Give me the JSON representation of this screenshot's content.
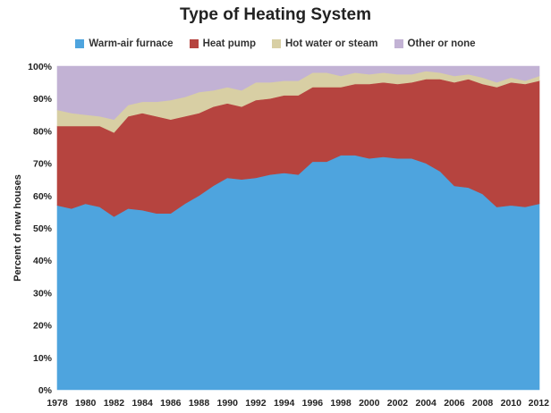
{
  "chart_data": {
    "type": "area",
    "stacked": true,
    "title": "Type of Heating System",
    "xlabel": "",
    "ylabel": "Percent of new houses",
    "ylim": [
      0,
      100
    ],
    "yticks": [
      "0%",
      "10%",
      "20%",
      "30%",
      "40%",
      "50%",
      "60%",
      "70%",
      "80%",
      "90%",
      "100%"
    ],
    "xticks": [
      "1978",
      "1980",
      "1982",
      "1984",
      "1986",
      "1988",
      "1990",
      "1992",
      "1994",
      "1996",
      "1998",
      "2000",
      "2002",
      "2004",
      "2006",
      "2008",
      "2010",
      "2012"
    ],
    "legend_position": "top",
    "grid": false,
    "background": "#ffffff",
    "x": [
      1978,
      1979,
      1980,
      1981,
      1982,
      1983,
      1984,
      1985,
      1986,
      1987,
      1988,
      1989,
      1990,
      1991,
      1992,
      1993,
      1994,
      1995,
      1996,
      1997,
      1998,
      1999,
      2000,
      2001,
      2002,
      2003,
      2004,
      2005,
      2006,
      2007,
      2008,
      2009,
      2010,
      2011,
      2012
    ],
    "series": [
      {
        "name": "Warm-air furnace",
        "color": "#4ea4de",
        "values": [
          57,
          56,
          57.5,
          56.5,
          53.5,
          56,
          55.5,
          54.5,
          54.5,
          57.5,
          60,
          63,
          65.5,
          65,
          65.5,
          66.5,
          67,
          66.5,
          70.5,
          70.5,
          72.5,
          72.5,
          71.5,
          72,
          71.5,
          71.5,
          70,
          67.5,
          63,
          62.5,
          60.5,
          56.5,
          57,
          56.5,
          57.5
        ]
      },
      {
        "name": "Heat pump",
        "color": "#b6443f",
        "values": [
          24.5,
          25.5,
          24,
          25,
          26,
          28.5,
          30,
          30,
          29,
          27,
          25.5,
          24.5,
          23,
          22.5,
          24,
          23.5,
          24,
          24.5,
          23,
          23,
          21,
          22,
          23,
          23,
          23,
          23.5,
          26,
          28.5,
          32,
          33.5,
          34,
          37,
          38,
          38,
          38
        ]
      },
      {
        "name": "Hot water or steam",
        "color": "#d8cfa4",
        "values": [
          5,
          4,
          3.5,
          3,
          4,
          3.5,
          3.5,
          4.5,
          6,
          6,
          6.5,
          5,
          5,
          5,
          5.5,
          5,
          4.5,
          4.5,
          4.5,
          4.5,
          3.5,
          3.5,
          3,
          3,
          3,
          2.5,
          2.5,
          2,
          2,
          1.5,
          2,
          1.5,
          1.5,
          1,
          1.5
        ]
      },
      {
        "name": "Other or none",
        "color": "#c2b2d4",
        "values": [
          13.5,
          14.5,
          15,
          15.5,
          16.5,
          12,
          11,
          11,
          10.5,
          9.5,
          8,
          7.5,
          6.5,
          7.5,
          5,
          5,
          4.5,
          4.5,
          2,
          2,
          3,
          2,
          2.5,
          2,
          2.5,
          2.5,
          1.5,
          2,
          3,
          2.5,
          3.5,
          5,
          3.5,
          4.5,
          3
        ]
      }
    ]
  }
}
